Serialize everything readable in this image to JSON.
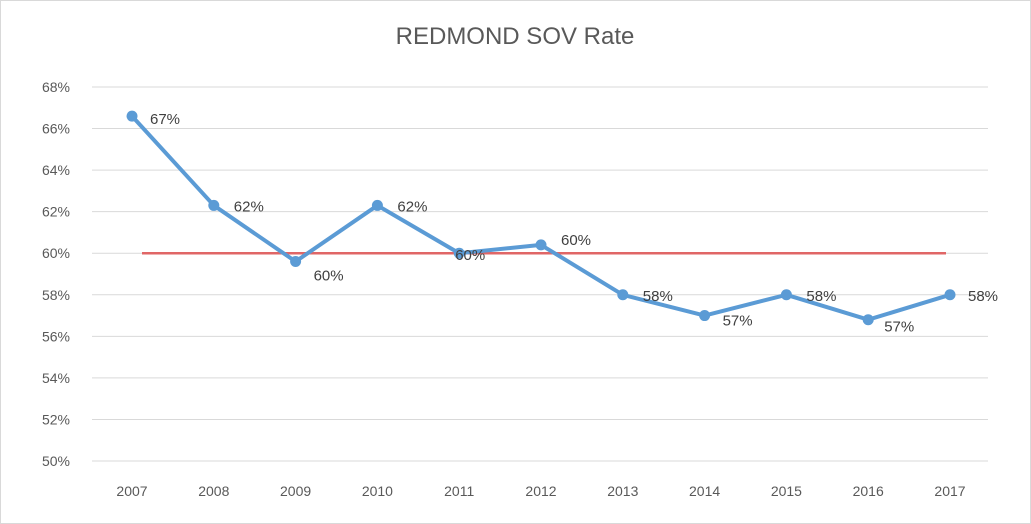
{
  "chart_data": {
    "type": "line",
    "title": "REDMOND SOV Rate",
    "xlabel": "",
    "ylabel": "",
    "categories": [
      "2007",
      "2008",
      "2009",
      "2010",
      "2011",
      "2012",
      "2013",
      "2014",
      "2015",
      "2016",
      "2017"
    ],
    "series": [
      {
        "values": [
          66.6,
          62.3,
          59.6,
          62.3,
          60.0,
          60.4,
          58.0,
          57.0,
          58.0,
          56.8,
          58.0
        ],
        "labels": [
          "67%",
          "62%",
          "60%",
          "62%",
          "60%",
          "60%",
          "58%",
          "57%",
          "58%",
          "57%",
          "58%"
        ],
        "color": "#5b9bd5"
      },
      {
        "values": [
          60,
          60,
          60,
          60,
          60,
          60,
          60,
          60,
          60,
          60,
          60
        ],
        "color": "#e06666"
      }
    ],
    "ylim": [
      50,
      68
    ],
    "ytick_step": 2,
    "ytick_labels": [
      "50%",
      "52%",
      "54%",
      "56%",
      "58%",
      "60%",
      "62%",
      "64%",
      "66%",
      "68%"
    ],
    "grid": true,
    "legend": "none"
  }
}
